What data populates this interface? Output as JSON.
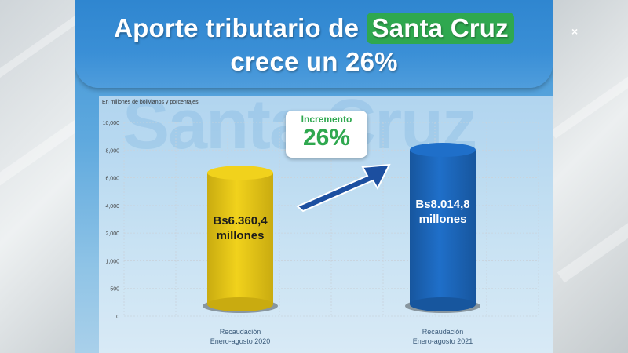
{
  "title": {
    "line1_prefix": "Aporte tributario de ",
    "line1_highlight": "Santa Cruz",
    "line2": "crece un 26%"
  },
  "subtitle": "En millones de bolivianos y porcentajes",
  "watermark": "Santa Cruz",
  "increment": {
    "label": "Incremento",
    "value": "26%"
  },
  "close_icon": "×",
  "colors": {
    "bar_2020": "#f1d21c",
    "bar_2021": "#1f6fc9",
    "highlight": "#2fa84f",
    "arrow": "#1c4fa0"
  },
  "chart_data": {
    "type": "bar",
    "categories": [
      "Recaudación\nEnero-agosto 2020",
      "Recaudación\nEnero-agosto 2021"
    ],
    "category_lines": [
      [
        "Recaudación",
        "Enero-agosto 2020"
      ],
      [
        "Recaudación",
        "Enero-agosto 2021"
      ]
    ],
    "values": [
      6360.4,
      8014.8
    ],
    "value_labels": [
      [
        "Bs6.360,4",
        "millones"
      ],
      [
        "Bs8.014,8",
        "millones"
      ]
    ],
    "title": "Aporte tributario de Santa Cruz crece un 26%",
    "ylabel": "En millones de bolivianos y porcentajes",
    "ylim": [
      0,
      10000
    ],
    "yticks": [
      0,
      500,
      1000,
      2000,
      4000,
      6000,
      8000,
      10000
    ],
    "ytick_labels": [
      "0",
      "500",
      "1,000",
      "2,000",
      "4,000",
      "6,000",
      "8,000",
      "10,000"
    ],
    "grid": true,
    "legend": "none"
  }
}
